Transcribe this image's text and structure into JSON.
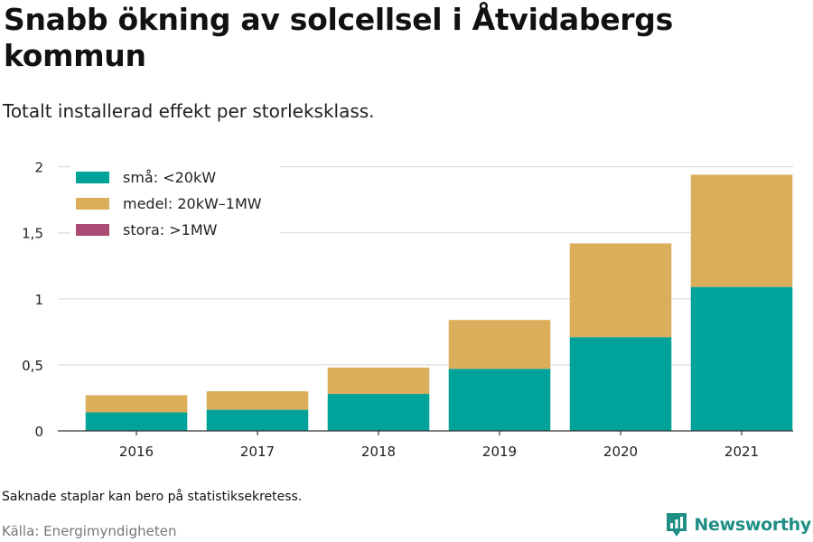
{
  "header": {
    "title": "Snabb ökning av solcellsel i Åtvidabergs kommun",
    "subtitle": "Totalt installerad effekt per storleksklass."
  },
  "footer": {
    "note": "Saknade staplar kan bero på statistiksekretess.",
    "source": "Källa: Energimyndigheten",
    "brand": "Newsworthy",
    "brand_icon": "newsworthy-logo-icon"
  },
  "colors": {
    "sma": "#00a399",
    "medel": "#dbae5c",
    "stora": "#ab4a72",
    "grid": "#dddddd",
    "axis": "#333333",
    "brand": "#1f8f85"
  },
  "chart_data": {
    "type": "bar",
    "stacked": true,
    "categories": [
      "2016",
      "2017",
      "2018",
      "2019",
      "2020",
      "2021"
    ],
    "series": [
      {
        "name": "små: <20kW",
        "color": "#00a399",
        "values": [
          0.14,
          0.16,
          0.28,
          0.47,
          0.71,
          1.09
        ]
      },
      {
        "name": "medel: 20kW–1MW",
        "color": "#dbae5c",
        "values": [
          0.13,
          0.14,
          0.2,
          0.37,
          0.71,
          0.85
        ]
      },
      {
        "name": "stora: >1MW",
        "color": "#ab4a72",
        "values": [
          0,
          0,
          0,
          0,
          0,
          0
        ]
      }
    ],
    "ylim": [
      0,
      2.1
    ],
    "yticks": [
      0,
      0.5,
      1,
      1.5,
      2
    ],
    "ytick_labels": [
      "0",
      "0,5",
      "1",
      "1,5",
      "2"
    ],
    "xlabel": "",
    "ylabel": "",
    "grid": true,
    "legend_position": "top-left"
  }
}
